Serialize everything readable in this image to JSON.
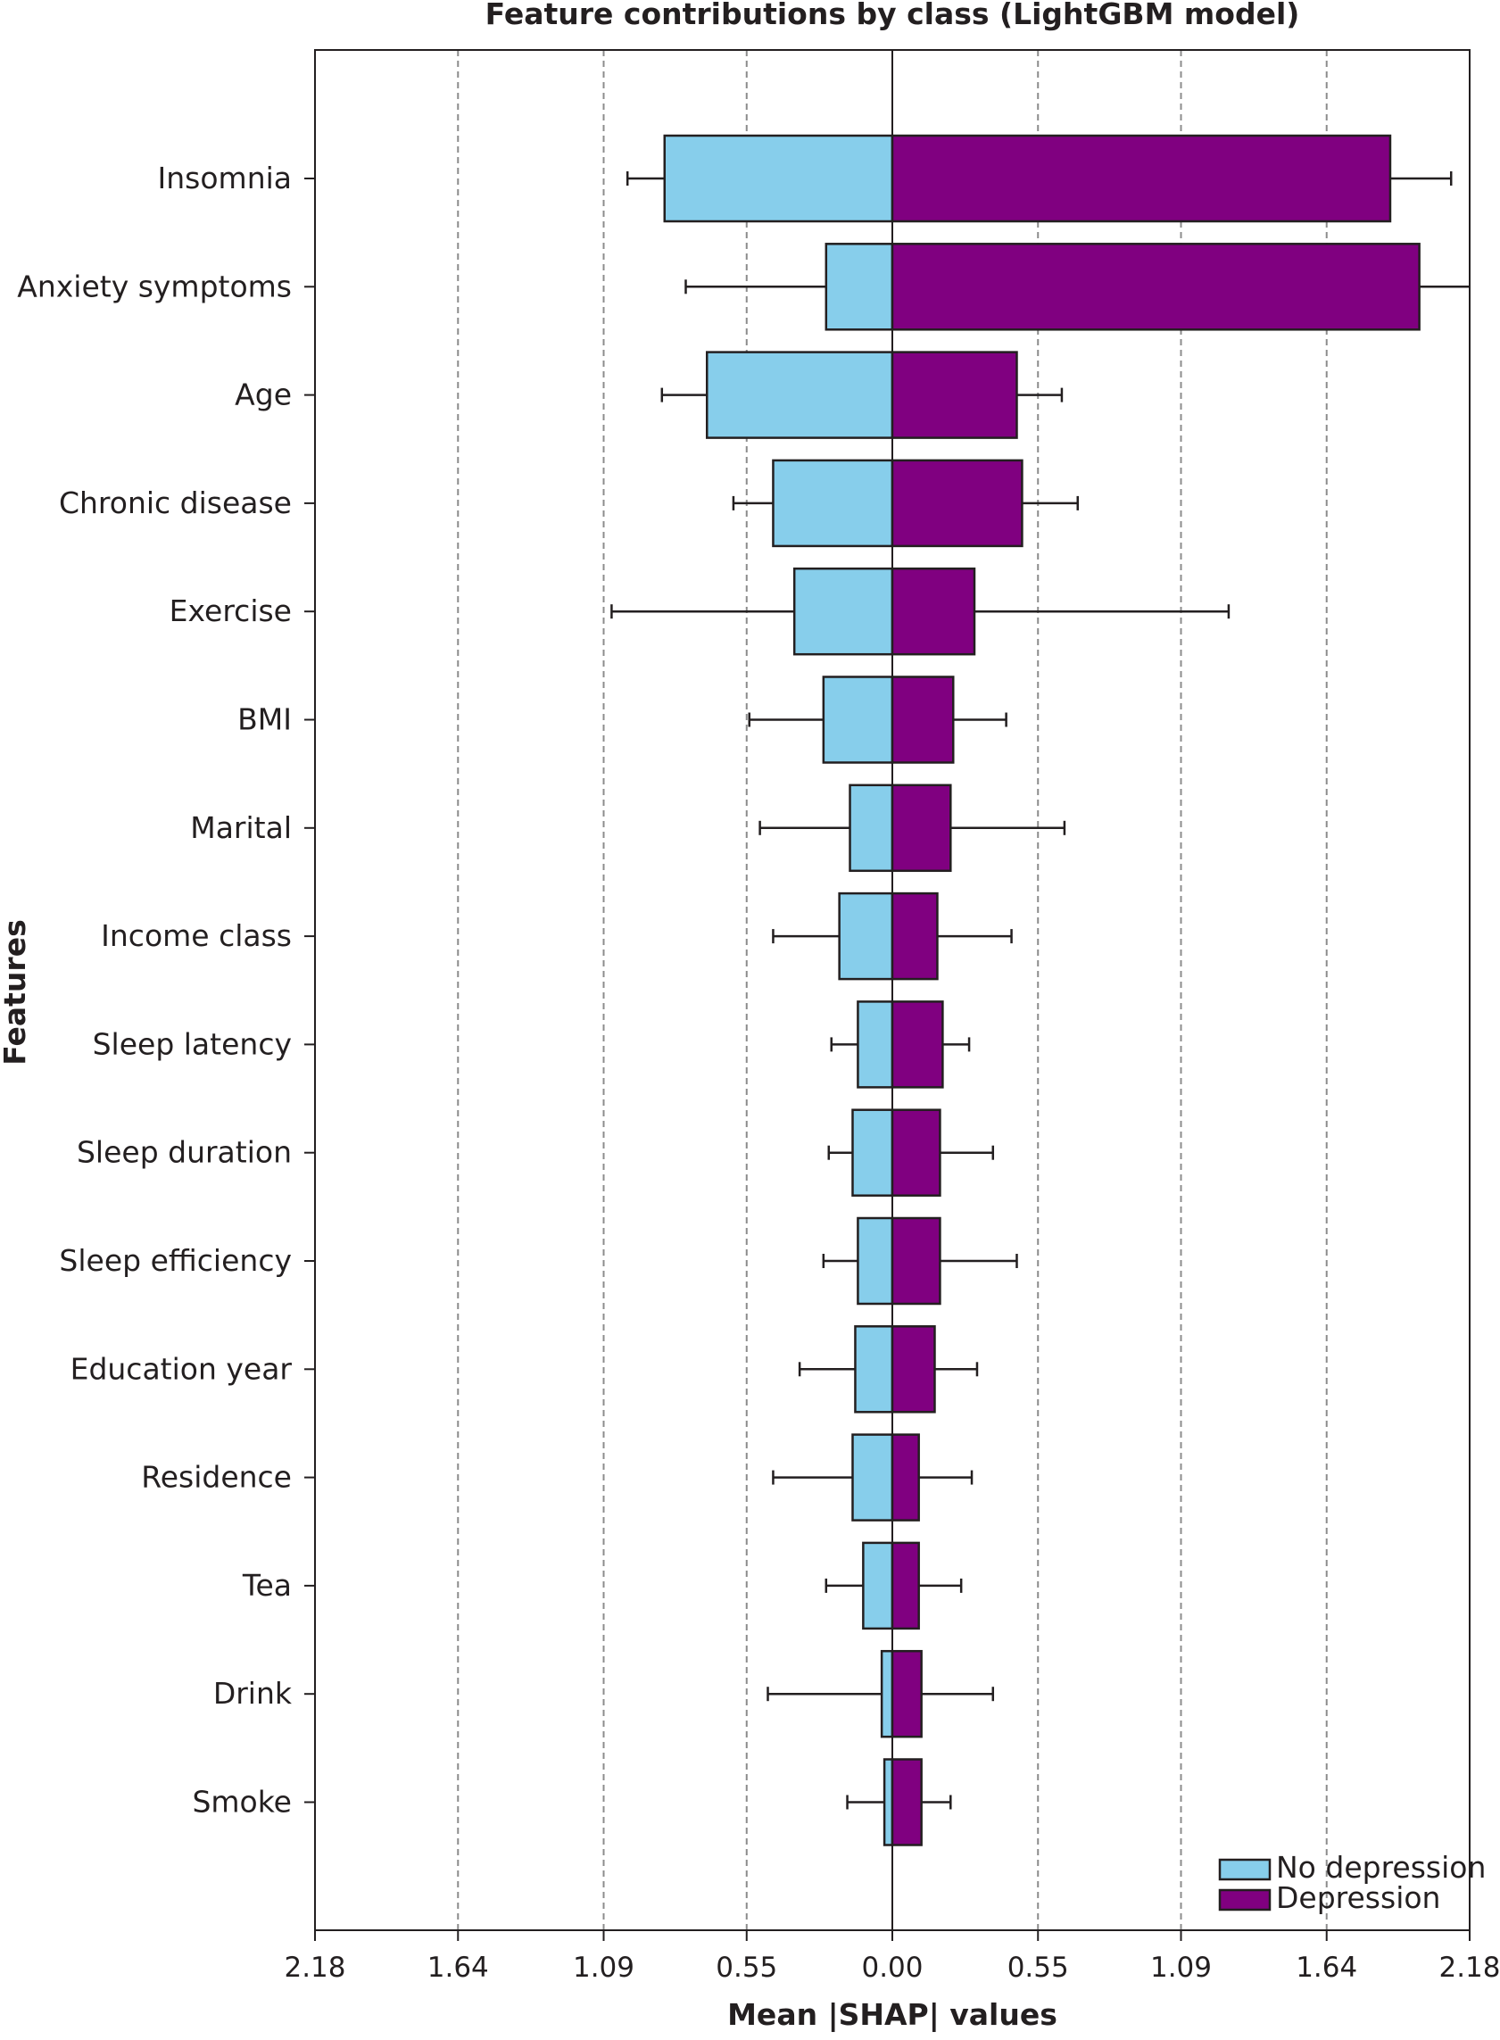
{
  "chart_data": {
    "type": "bar",
    "orientation": "horizontal-diverging",
    "title": "Feature contributions by class (LightGBM model)",
    "xlabel": "Mean |SHAP| values",
    "ylabel": "Features",
    "xlim": [
      -2.18,
      2.18
    ],
    "xticks": [
      -2.18,
      -1.64,
      -1.09,
      -0.55,
      0.0,
      0.55,
      1.09,
      1.64,
      2.18
    ],
    "xtick_labels": [
      "2.18",
      "1.64",
      "1.09",
      "0.55",
      "0.00",
      "0.55",
      "1.09",
      "1.64",
      "2.18"
    ],
    "grid": "vertical dashed",
    "legend_position": "bottom-right",
    "categories": [
      "Insomnia",
      "Anxiety symptoms",
      "Age",
      "Chronic disease",
      "Exercise",
      "BMI",
      "Marital",
      "Income class",
      "Sleep latency",
      "Sleep duration",
      "Sleep efficiency",
      "Education year",
      "Residence",
      "Tea",
      "Drink",
      "Smoke"
    ],
    "series": [
      {
        "name": "No depression",
        "color": "#87ceeb",
        "values": [
          0.86,
          0.25,
          0.7,
          0.45,
          0.37,
          0.26,
          0.16,
          0.2,
          0.13,
          0.15,
          0.13,
          0.14,
          0.15,
          0.11,
          0.04,
          0.03
        ],
        "error_extent": [
          1.0,
          0.78,
          0.87,
          0.6,
          1.06,
          0.54,
          0.5,
          0.45,
          0.23,
          0.24,
          0.26,
          0.35,
          0.45,
          0.25,
          0.47,
          0.17
        ]
      },
      {
        "name": "Depression",
        "color": "#800080",
        "values": [
          1.88,
          1.99,
          0.47,
          0.49,
          0.31,
          0.23,
          0.22,
          0.17,
          0.19,
          0.18,
          0.18,
          0.16,
          0.1,
          0.1,
          0.11,
          0.11
        ],
        "error_extent": [
          2.11,
          2.18,
          0.64,
          0.7,
          1.27,
          0.43,
          0.65,
          0.45,
          0.29,
          0.38,
          0.47,
          0.32,
          0.3,
          0.26,
          0.38,
          0.22
        ]
      }
    ]
  }
}
